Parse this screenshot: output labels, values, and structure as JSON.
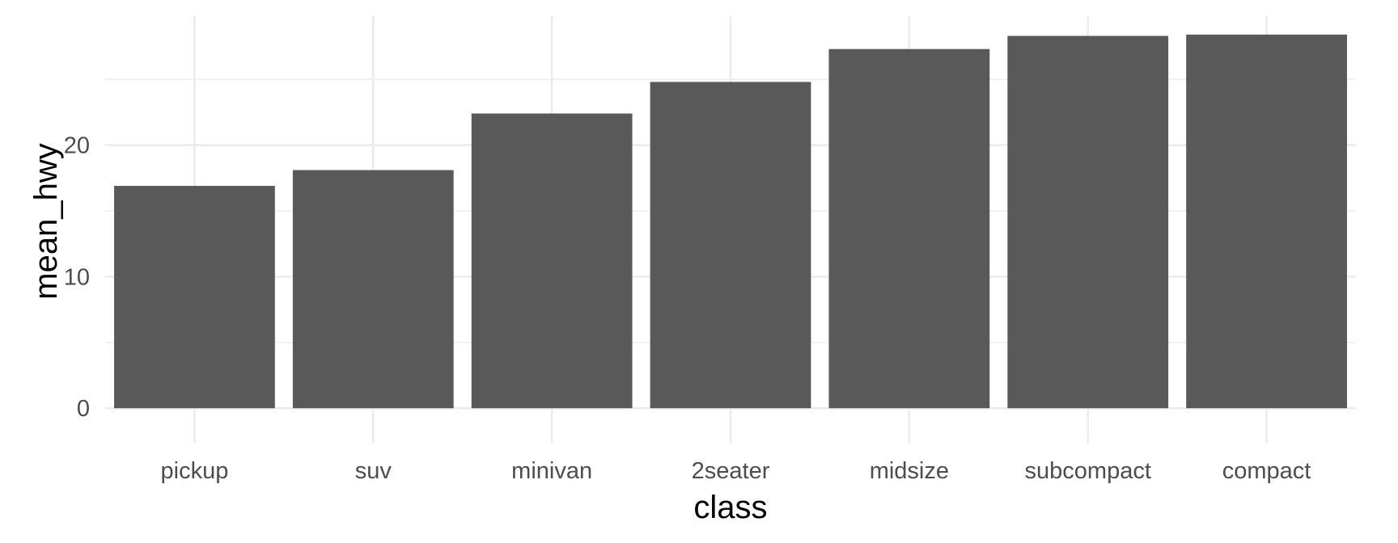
{
  "chart_data": {
    "type": "bar",
    "title": "",
    "xlabel": "class",
    "ylabel": "mean_hwy",
    "categories": [
      "pickup",
      "suv",
      "minivan",
      "2seater",
      "midsize",
      "subcompact",
      "compact"
    ],
    "values": [
      16.9,
      18.1,
      22.4,
      24.8,
      27.3,
      28.3,
      28.4
    ],
    "yticks": [
      0,
      10,
      20
    ],
    "ylim": [
      -1.4,
      29.8
    ],
    "grid": true,
    "legend": "none",
    "colors": {
      "bar": "#595959",
      "grid": "#ebebeb",
      "tick_text": "#4d4d4d",
      "axis_title": "#000000",
      "background": "#ffffff"
    }
  }
}
